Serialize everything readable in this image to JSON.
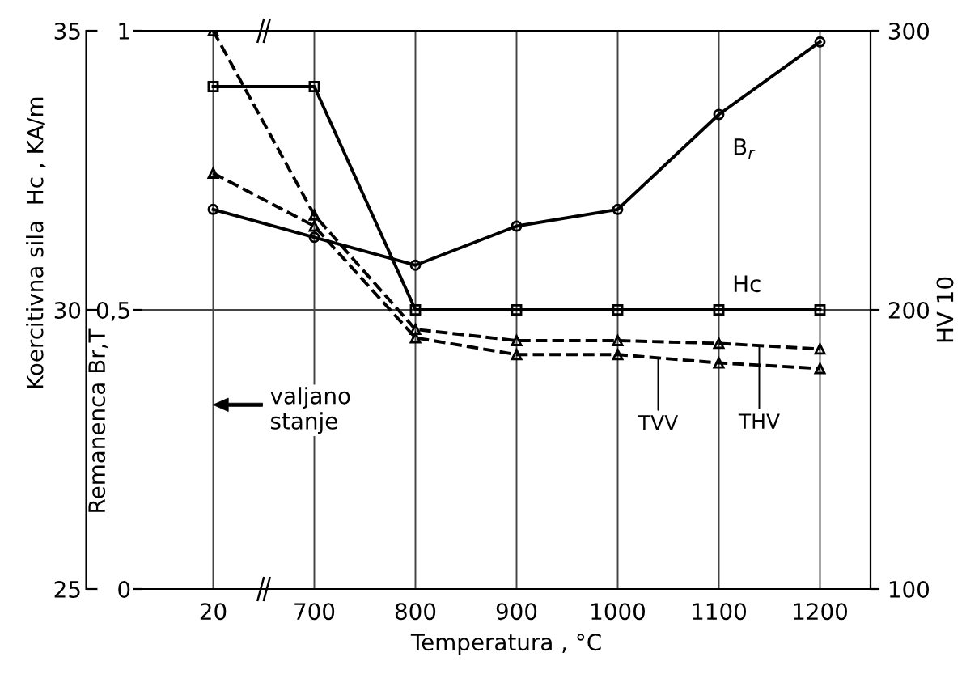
{
  "chart_data": {
    "type": "line",
    "xlabel": "Temperatura , °C",
    "ylabel": "Koercitivna sila  Hc , KA/m",
    "y2label": "Remanenca Br,T",
    "y3label": "HV 10",
    "categories": [
      "20",
      "700",
      "800",
      "900",
      "1000",
      "1100",
      "1200"
    ],
    "ylim": [
      25,
      35
    ],
    "yticks": [
      25,
      30,
      35
    ],
    "y2lim": [
      0,
      1
    ],
    "y2ticks": [
      0,
      {
        "value": 0.5,
        "label": "0,5"
      },
      1
    ],
    "y3lim": [
      100,
      300
    ],
    "y3ticks": [
      100,
      200,
      300
    ],
    "grid": true,
    "series": [
      {
        "name": "B$_{r}$",
        "color": "#000000",
        "axis": "y2",
        "marker": "circle",
        "line_style": "solid",
        "values": [
          0.68,
          0.63,
          0.58,
          0.65,
          0.68,
          0.85,
          0.98
        ]
      },
      {
        "name": "Hc",
        "color": "#000000",
        "axis": "y",
        "marker": "square",
        "line_style": "solid",
        "values": [
          34,
          34,
          30,
          30,
          30,
          30,
          30
        ]
      },
      {
        "name": "THV",
        "color": "#000000",
        "axis": "y3",
        "marker": "triangle",
        "line_style": "dashed",
        "values": [
          300,
          234,
          193,
          189,
          189,
          188,
          186
        ]
      },
      {
        "name": "TVV",
        "color": "#000000",
        "axis": "y3",
        "marker": "triangle",
        "line_style": "dashed",
        "values": [
          249,
          230,
          190,
          184,
          184,
          181,
          179
        ]
      }
    ],
    "annotations": [
      "valjano\nstanje"
    ]
  }
}
